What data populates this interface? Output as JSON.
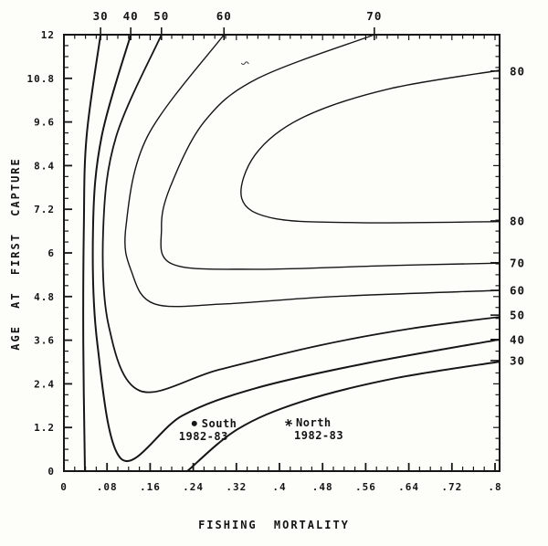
{
  "figure": {
    "background": "#fdfdfa",
    "ink": "#161616"
  },
  "chart_data": {
    "type": "contour",
    "title": "",
    "xlabel": "FISHING MORTALITY",
    "ylabel": "AGE AT FIRST CAPTURE",
    "xlim": [
      0,
      0.8085
    ],
    "ylim": [
      0,
      12
    ],
    "grid": false,
    "x_ticks": [
      {
        "v": 0,
        "label": "0"
      },
      {
        "v": 0.08,
        "label": ".08"
      },
      {
        "v": 0.16,
        "label": ".16"
      },
      {
        "v": 0.24,
        "label": ".24"
      },
      {
        "v": 0.32,
        "label": ".32"
      },
      {
        "v": 0.4,
        "label": ".4"
      },
      {
        "v": 0.48,
        "label": ".48"
      },
      {
        "v": 0.56,
        "label": ".56"
      },
      {
        "v": 0.64,
        "label": ".64"
      },
      {
        "v": 0.72,
        "label": ".72"
      },
      {
        "v": 0.8,
        "label": ".8"
      }
    ],
    "x_minor_step": 0.02,
    "y_ticks": [
      {
        "v": 12,
        "label": "12"
      },
      {
        "v": 10.8,
        "label": "10.8"
      },
      {
        "v": 9.6,
        "label": "9.6"
      },
      {
        "v": 8.4,
        "label": "8.4"
      },
      {
        "v": 7.2,
        "label": "7.2"
      },
      {
        "v": 6,
        "label": "6"
      },
      {
        "v": 4.8,
        "label": "4.8"
      },
      {
        "v": 3.6,
        "label": "3.6"
      },
      {
        "v": 2.4,
        "label": "2.4"
      },
      {
        "v": 1.2,
        "label": "1.2"
      },
      {
        "v": 0,
        "label": "0"
      }
    ],
    "y_minor_step": 0.3,
    "contours": [
      {
        "level": "30",
        "branch": "left",
        "points": [
          [
            0.068,
            12
          ],
          [
            0.042,
            9.2
          ],
          [
            0.037,
            6.7
          ],
          [
            0.036,
            3.5
          ],
          [
            0.039,
            0
          ]
        ]
      },
      {
        "level": "30",
        "branch": "lower-right",
        "points": [
          [
            0.229,
            0
          ],
          [
            0.322,
            1.15
          ],
          [
            0.441,
            1.91
          ],
          [
            0.61,
            2.54
          ],
          [
            0.8085,
            3.01
          ]
        ]
      },
      {
        "level": "40",
        "points": [
          [
            0.124,
            12
          ],
          [
            0.07,
            9.2
          ],
          [
            0.054,
            6.7
          ],
          [
            0.062,
            3.5
          ],
          [
            0.107,
            0.33
          ],
          [
            0.22,
            1.53
          ],
          [
            0.356,
            2.28
          ],
          [
            0.559,
            2.96
          ],
          [
            0.8085,
            3.62
          ]
        ]
      },
      {
        "level": "50",
        "points": [
          [
            0.181,
            12
          ],
          [
            0.097,
            9.2
          ],
          [
            0.073,
            6.7
          ],
          [
            0.083,
            4.0
          ],
          [
            0.141,
            2.21
          ],
          [
            0.288,
            2.79
          ],
          [
            0.475,
            3.46
          ],
          [
            0.644,
            3.92
          ],
          [
            0.8085,
            4.24
          ]
        ]
      },
      {
        "level": "60",
        "points": [
          [
            0.297,
            12
          ],
          [
            0.155,
            9.2
          ],
          [
            0.115,
            6.7
          ],
          [
            0.125,
            5.5
          ],
          [
            0.168,
            4.6
          ],
          [
            0.3,
            4.6
          ],
          [
            0.5,
            4.8
          ],
          [
            0.8085,
            4.97
          ]
        ]
      },
      {
        "level": "70",
        "points": [
          [
            0.576,
            12
          ],
          [
            0.36,
            10.8
          ],
          [
            0.26,
            9.6
          ],
          [
            0.197,
            7.8
          ],
          [
            0.181,
            6.68
          ],
          [
            0.2,
            5.7
          ],
          [
            0.35,
            5.55
          ],
          [
            0.6,
            5.65
          ],
          [
            0.8085,
            5.72
          ]
        ]
      },
      {
        "level": "80",
        "points": [
          [
            0.8085,
            11.02
          ],
          [
            0.6,
            10.5
          ],
          [
            0.44,
            9.7
          ],
          [
            0.355,
            8.7
          ],
          [
            0.33,
            7.5
          ],
          [
            0.39,
            6.95
          ],
          [
            0.55,
            6.83
          ],
          [
            0.8085,
            6.86
          ]
        ]
      }
    ],
    "contour_labels": [
      {
        "text": "30",
        "side": "top",
        "at": 0.068
      },
      {
        "text": "40",
        "side": "top",
        "at": 0.124
      },
      {
        "text": "50",
        "side": "top",
        "at": 0.181
      },
      {
        "text": "60",
        "side": "top",
        "at": 0.297
      },
      {
        "text": "70",
        "side": "top",
        "at": 0.576
      },
      {
        "text": "80",
        "side": "right",
        "at": 11.0
      },
      {
        "text": "80",
        "side": "right",
        "at": 6.88
      },
      {
        "text": "70",
        "side": "right",
        "at": 5.73
      },
      {
        "text": "60",
        "side": "right",
        "at": 4.97
      },
      {
        "text": "50",
        "side": "right",
        "at": 4.29
      },
      {
        "text": "40",
        "side": "right",
        "at": 3.62
      },
      {
        "text": "30",
        "side": "right",
        "at": 3.04
      }
    ],
    "points": [
      {
        "name": "south",
        "marker": "dot",
        "F": 0.242,
        "age": 1.31,
        "label_line1": "South",
        "label_line2": "1982-83"
      },
      {
        "name": "north",
        "marker": "asterisk",
        "F": 0.417,
        "age": 1.33,
        "label_line1": "North",
        "label_line2": "1982-83"
      }
    ],
    "scan_artifact": {
      "F": 0.336,
      "age": 11.22
    }
  }
}
